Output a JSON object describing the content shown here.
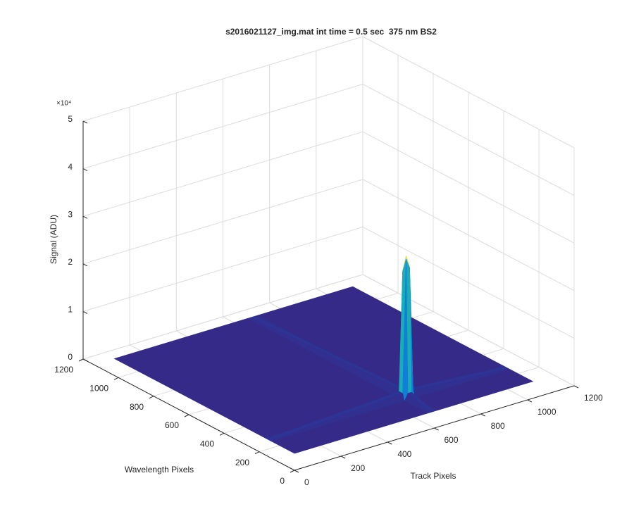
{
  "chart_data": {
    "type": "surface",
    "title": "s2016021127_img.mat int time = 0.5 sec  375 nm BS2",
    "xlabel": "Track Pixels",
    "ylabel": "Wavelength Pixels",
    "zlabel": "Signal (ADU)",
    "zexponent": "×10⁴",
    "colormap": "parula",
    "grid": true,
    "x": [
      1,
      570,
      585,
      600,
      615,
      1024
    ],
    "y": [
      1,
      130,
      140,
      160,
      170,
      1024
    ],
    "z": [
      [
        3500,
        3500,
        3500,
        3500,
        3500,
        3500
      ],
      [
        3500,
        3500,
        5000,
        5000,
        3500,
        3500
      ],
      [
        3500,
        5000,
        33000,
        31000,
        5000,
        3500
      ],
      [
        3500,
        5000,
        30000,
        33000,
        5000,
        3500
      ],
      [
        3500,
        3500,
        5000,
        5000,
        3500,
        3500
      ],
      [
        3500,
        3500,
        3500,
        3500,
        3500,
        3500
      ]
    ],
    "xlim": [
      0,
      1200
    ],
    "ylim": [
      0,
      1200
    ],
    "zlim": [
      0,
      50000
    ],
    "xticks": [
      0,
      200,
      400,
      600,
      800,
      1000,
      1200
    ],
    "yticks": [
      0,
      200,
      400,
      600,
      800,
      1000,
      1200
    ],
    "zticks": [
      {
        "value": 0,
        "label": "0"
      },
      {
        "value": 10000,
        "label": "1"
      },
      {
        "value": 20000,
        "label": "2"
      },
      {
        "value": 30000,
        "label": "3"
      },
      {
        "value": 40000,
        "label": "4"
      },
      {
        "value": 50000,
        "label": "5"
      }
    ]
  }
}
